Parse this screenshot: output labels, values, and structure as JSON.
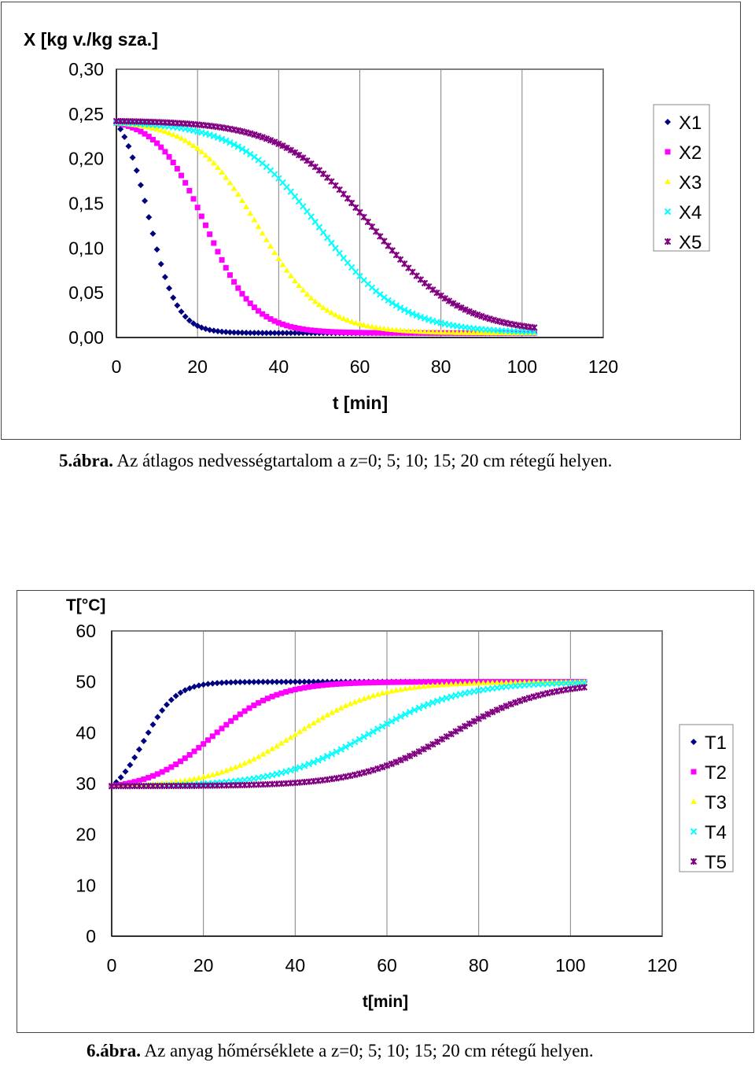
{
  "chart_data": [
    {
      "type": "scatter",
      "ylabel": "X [kg v./kg sza.]",
      "xlabel": "t [min]",
      "xlim": [
        0,
        120
      ],
      "ylim": [
        0,
        0.3
      ],
      "x_ticks": [
        "0",
        "20",
        "40",
        "60",
        "80",
        "100",
        "120"
      ],
      "y_ticks": [
        "0,00",
        "0,05",
        "0,10",
        "0,15",
        "0,20",
        "0,25",
        "0,30"
      ],
      "grid": "vertical",
      "legend": "right",
      "x": [
        0,
        103
      ],
      "series": [
        {
          "name": "X1",
          "color": "#000080",
          "marker": "diamond",
          "start": 0.24,
          "end": 0.005,
          "mid": 8,
          "width": 3.5
        },
        {
          "name": "X2",
          "color": "#FF00FF",
          "marker": "square",
          "start": 0.24,
          "end": 0.005,
          "mid": 22,
          "width": 6
        },
        {
          "name": "X3",
          "color": "#FFFF00",
          "marker": "triangle",
          "start": 0.24,
          "end": 0.005,
          "mid": 35,
          "width": 8
        },
        {
          "name": "X4",
          "color": "#00FFFF",
          "marker": "x",
          "start": 0.24,
          "end": 0.005,
          "mid": 50,
          "width": 10
        },
        {
          "name": "X5",
          "color": "#800080",
          "marker": "star",
          "start": 0.242,
          "end": 0.005,
          "mid": 63,
          "width": 11
        }
      ]
    },
    {
      "type": "scatter",
      "ylabel": "T[°C]",
      "xlabel": "t[min]",
      "xlim": [
        0,
        120
      ],
      "ylim": [
        0,
        60
      ],
      "x_ticks": [
        "0",
        "20",
        "40",
        "60",
        "80",
        "100",
        "120"
      ],
      "y_ticks": [
        "0",
        "10",
        "20",
        "30",
        "40",
        "50",
        "60"
      ],
      "grid": "vertical",
      "legend": "right",
      "x": [
        0,
        103
      ],
      "series": [
        {
          "name": "T1",
          "color": "#000080",
          "marker": "diamond",
          "start": 29.5,
          "end": 50,
          "mid": 7,
          "width": 3.5
        },
        {
          "name": "T2",
          "color": "#FF00FF",
          "marker": "square",
          "start": 29.5,
          "end": 50,
          "mid": 22,
          "width": 7
        },
        {
          "name": "T3",
          "color": "#FFFF00",
          "marker": "triangle",
          "start": 29.5,
          "end": 50,
          "mid": 40,
          "width": 9
        },
        {
          "name": "T4",
          "color": "#00FFFF",
          "marker": "x",
          "start": 29.5,
          "end": 50,
          "mid": 56,
          "width": 10
        },
        {
          "name": "T5",
          "color": "#800080",
          "marker": "star",
          "start": 29.5,
          "end": 50,
          "mid": 74,
          "width": 10
        }
      ]
    }
  ],
  "captions": [
    {
      "bold": "5.ábra.",
      "text": " Az átlagos nedvességtartalom a z=0; 5; 10; 15; 20 cm rétegű helyen."
    },
    {
      "bold": "6.ábra.",
      "text": " Az anyag hőmérséklete a z=0; 5; 10; 15; 20 cm rétegű helyen."
    }
  ]
}
